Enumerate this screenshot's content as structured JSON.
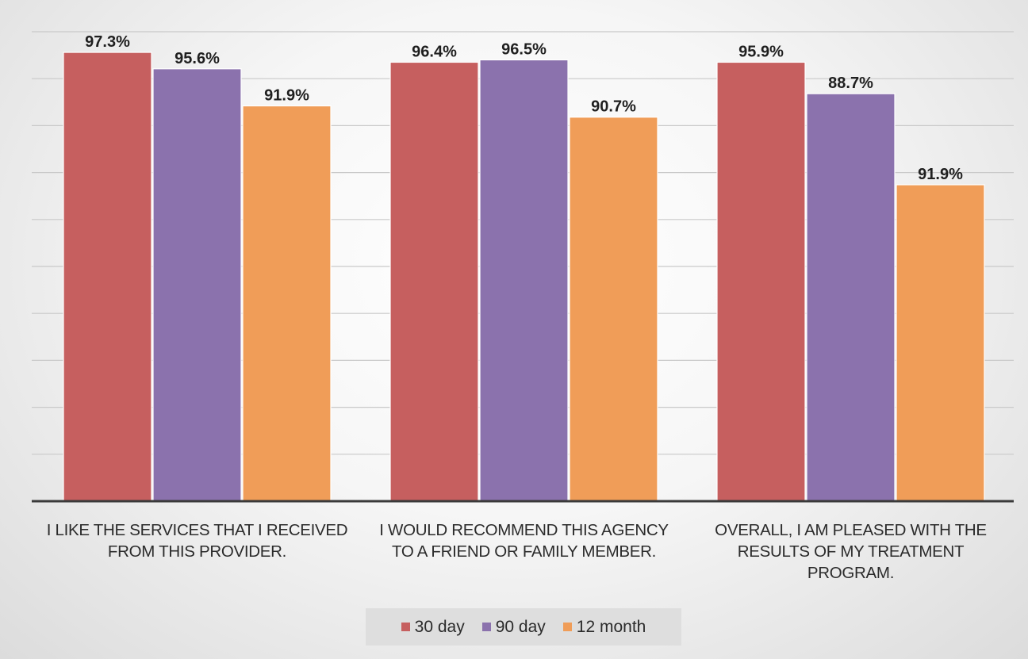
{
  "chart_data": {
    "type": "bar",
    "categories": [
      [
        "I LIKE THE SERVICES THAT I RECEIVED",
        "FROM THIS PROVIDER."
      ],
      [
        "I WOULD RECOMMEND THIS AGENCY",
        "TO A FRIEND OR FAMILY MEMBER."
      ],
      [
        "OVERALL, I AM PLEASED WITH THE",
        "RESULTS OF MY TREATMENT",
        "PROGRAM."
      ]
    ],
    "series": [
      {
        "name": "30 day",
        "color": "#c65f5f",
        "values": [
          97.3,
          96.4,
          95.9
        ],
        "labels": [
          "97.3%",
          "96.4%",
          "95.9%"
        ]
      },
      {
        "name": "90 day",
        "color": "#8b72ad",
        "values": [
          95.6,
          96.5,
          88.7
        ],
        "labels": [
          "95.6%",
          "96.5%",
          "88.7%"
        ]
      },
      {
        "name": "12 month",
        "color": "#f09d58",
        "values": [
          91.9,
          90.7,
          91.9
        ],
        "labels": [
          "91.9%",
          "90.7%",
          "91.9%"
        ]
      }
    ],
    "heights_pct": [
      [
        95.6,
        93.5,
        93.5
      ],
      [
        92.1,
        94.0,
        86.8
      ],
      [
        84.2,
        81.8,
        67.4
      ]
    ],
    "ylim": [
      0,
      100
    ],
    "grid": true,
    "legend_position": "bottom"
  }
}
